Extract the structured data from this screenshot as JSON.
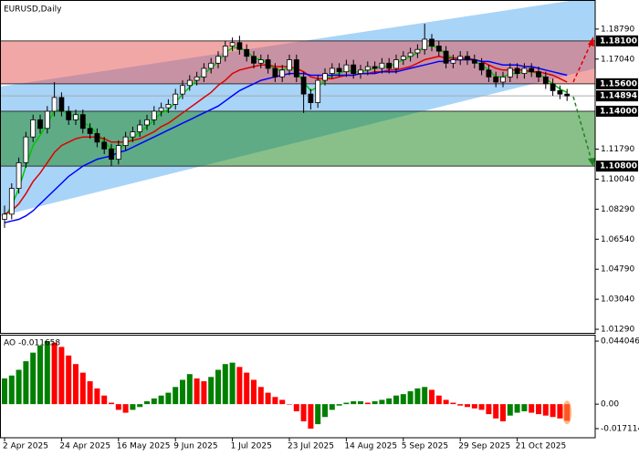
{
  "chart_data": [
    {
      "type": "candlestick",
      "title": "EURUSD,Daily",
      "categories": [
        "2 Apr 2025",
        null,
        null,
        null,
        null,
        null,
        null,
        null,
        "24 Apr 2025",
        null,
        null,
        null,
        null,
        null,
        null,
        null,
        "16 May 2025",
        null,
        null,
        null,
        null,
        null,
        null,
        null,
        "9 Jun 2025",
        null,
        null,
        null,
        null,
        null,
        null,
        null,
        "1 Jul 2025",
        null,
        null,
        null,
        null,
        null,
        null,
        null,
        "23 Jul 2025",
        null,
        null,
        null,
        null,
        null,
        null,
        null,
        "14 Aug 2025",
        null,
        null,
        null,
        null,
        null,
        null,
        null,
        "5 Sep 2025",
        null,
        null,
        null,
        null,
        null,
        null,
        null,
        "29 Sep 2025",
        null,
        null,
        null,
        null,
        null,
        null,
        null,
        "21 Oct 2025",
        null,
        null,
        null,
        null,
        null,
        null,
        null
      ],
      "open": [
        1.077,
        1.08,
        1.095,
        1.11,
        1.125,
        1.135,
        1.13,
        1.14,
        1.148,
        1.14,
        1.135,
        1.138,
        1.13,
        1.127,
        1.122,
        1.118,
        1.112,
        1.12,
        1.125,
        1.128,
        1.132,
        1.135,
        1.14,
        1.142,
        1.144,
        1.15,
        1.155,
        1.158,
        1.16,
        1.165,
        1.168,
        1.172,
        1.178,
        1.18,
        1.176,
        1.172,
        1.168,
        1.17,
        1.165,
        1.16,
        1.164,
        1.17,
        1.16,
        1.15,
        1.145,
        1.158,
        1.162,
        1.165,
        1.163,
        1.167,
        1.162,
        1.164,
        1.166,
        1.165,
        1.168,
        1.165,
        1.17,
        1.172,
        1.174,
        1.176,
        1.182,
        1.178,
        1.175,
        1.168,
        1.17,
        1.172,
        1.17,
        1.168,
        1.164,
        1.16,
        1.157,
        1.16,
        1.165,
        1.162,
        1.165,
        1.163,
        1.16,
        1.156,
        1.152,
        1.15
      ],
      "high": [
        1.085,
        1.098,
        1.113,
        1.128,
        1.138,
        1.138,
        1.143,
        1.157,
        1.151,
        1.143,
        1.141,
        1.141,
        1.133,
        1.13,
        1.125,
        1.121,
        1.123,
        1.128,
        1.131,
        1.135,
        1.138,
        1.143,
        1.145,
        1.147,
        1.153,
        1.158,
        1.161,
        1.163,
        1.168,
        1.171,
        1.175,
        1.181,
        1.183,
        1.184,
        1.179,
        1.175,
        1.173,
        1.173,
        1.168,
        1.167,
        1.173,
        1.173,
        1.163,
        1.153,
        1.161,
        1.165,
        1.168,
        1.168,
        1.17,
        1.17,
        1.167,
        1.169,
        1.169,
        1.171,
        1.171,
        1.173,
        1.175,
        1.177,
        1.179,
        1.191,
        1.185,
        1.181,
        1.178,
        1.173,
        1.175,
        1.175,
        1.173,
        1.171,
        1.167,
        1.163,
        1.163,
        1.168,
        1.168,
        1.168,
        1.168,
        1.166,
        1.163,
        1.159,
        1.155,
        1.153
      ],
      "low": [
        1.072,
        1.077,
        1.092,
        1.107,
        1.122,
        1.127,
        1.127,
        1.137,
        1.137,
        1.132,
        1.132,
        1.127,
        1.124,
        1.119,
        1.115,
        1.108,
        1.109,
        1.117,
        1.122,
        1.125,
        1.129,
        1.132,
        1.137,
        1.139,
        1.141,
        1.147,
        1.152,
        1.155,
        1.157,
        1.162,
        1.165,
        1.169,
        1.175,
        1.173,
        1.169,
        1.165,
        1.165,
        1.162,
        1.157,
        1.157,
        1.161,
        1.157,
        1.139,
        1.141,
        1.142,
        1.155,
        1.159,
        1.16,
        1.16,
        1.159,
        1.159,
        1.161,
        1.162,
        1.162,
        1.162,
        1.162,
        1.167,
        1.169,
        1.171,
        1.173,
        1.175,
        1.172,
        1.165,
        1.165,
        1.167,
        1.167,
        1.165,
        1.161,
        1.157,
        1.154,
        1.154,
        1.157,
        1.159,
        1.159,
        1.16,
        1.157,
        1.153,
        1.149,
        1.147,
        1.146
      ],
      "close": [
        1.08,
        1.095,
        1.11,
        1.125,
        1.135,
        1.13,
        1.14,
        1.148,
        1.14,
        1.135,
        1.138,
        1.13,
        1.127,
        1.122,
        1.118,
        1.112,
        1.12,
        1.125,
        1.128,
        1.132,
        1.135,
        1.14,
        1.142,
        1.144,
        1.15,
        1.155,
        1.158,
        1.16,
        1.165,
        1.168,
        1.172,
        1.178,
        1.18,
        1.176,
        1.172,
        1.168,
        1.17,
        1.165,
        1.16,
        1.164,
        1.17,
        1.16,
        1.15,
        1.145,
        1.158,
        1.162,
        1.165,
        1.163,
        1.167,
        1.162,
        1.164,
        1.166,
        1.165,
        1.168,
        1.165,
        1.17,
        1.172,
        1.174,
        1.176,
        1.182,
        1.178,
        1.175,
        1.168,
        1.17,
        1.172,
        1.17,
        1.168,
        1.164,
        1.16,
        1.157,
        1.16,
        1.165,
        1.162,
        1.165,
        1.163,
        1.16,
        1.156,
        1.152,
        1.15,
        1.14894
      ],
      "moving_averages": [
        {
          "color": "#00c800",
          "values": [
            1.078,
            1.085,
            1.095,
            1.108,
            1.12,
            1.126,
            1.133,
            1.14,
            1.141,
            1.138,
            1.137,
            1.134,
            1.131,
            1.127,
            1.122,
            1.118,
            1.118,
            1.121,
            1.124,
            1.128,
            1.131,
            1.135,
            1.139,
            1.141,
            1.145,
            1.15,
            1.154,
            1.158,
            1.162,
            1.165,
            1.169,
            1.174,
            1.177,
            1.177,
            1.175,
            1.171,
            1.17,
            1.168,
            1.164,
            1.164,
            1.166,
            1.163,
            1.157,
            1.152,
            1.154,
            1.158,
            1.161,
            1.162,
            1.164,
            1.163,
            1.163,
            1.164,
            1.165,
            1.166,
            1.166,
            1.168,
            1.17,
            1.172,
            1.174,
            1.178,
            1.178,
            1.177,
            1.173,
            1.171,
            1.171,
            1.171,
            1.169,
            1.167,
            1.164,
            1.16,
            1.16,
            1.162,
            1.162,
            1.163,
            1.163,
            1.162,
            1.159,
            1.156,
            1.153,
            1.151
          ]
        },
        {
          "color": "#e00000",
          "values": [
            1.08,
            1.082,
            1.086,
            1.092,
            1.099,
            1.104,
            1.11,
            1.116,
            1.12,
            1.122,
            1.124,
            1.125,
            1.125,
            1.125,
            1.124,
            1.122,
            1.122,
            1.122,
            1.123,
            1.124,
            1.126,
            1.128,
            1.131,
            1.133,
            1.136,
            1.139,
            1.142,
            1.145,
            1.148,
            1.151,
            1.155,
            1.158,
            1.162,
            1.164,
            1.165,
            1.166,
            1.167,
            1.167,
            1.166,
            1.166,
            1.166,
            1.165,
            1.163,
            1.16,
            1.159,
            1.159,
            1.159,
            1.16,
            1.161,
            1.161,
            1.162,
            1.162,
            1.163,
            1.163,
            1.164,
            1.164,
            1.165,
            1.166,
            1.168,
            1.17,
            1.171,
            1.172,
            1.171,
            1.171,
            1.171,
            1.171,
            1.17,
            1.169,
            1.167,
            1.165,
            1.164,
            1.164,
            1.164,
            1.164,
            1.163,
            1.163,
            1.162,
            1.161,
            1.159,
            1.157
          ]
        },
        {
          "color": "#0000ff",
          "values": [
            1.075,
            1.076,
            1.077,
            1.079,
            1.082,
            1.086,
            1.09,
            1.094,
            1.098,
            1.102,
            1.105,
            1.108,
            1.11,
            1.112,
            1.113,
            1.114,
            1.116,
            1.117,
            1.119,
            1.121,
            1.123,
            1.125,
            1.127,
            1.129,
            1.131,
            1.133,
            1.135,
            1.137,
            1.139,
            1.141,
            1.143,
            1.146,
            1.149,
            1.152,
            1.154,
            1.156,
            1.158,
            1.159,
            1.16,
            1.161,
            1.162,
            1.162,
            1.162,
            1.161,
            1.161,
            1.161,
            1.161,
            1.161,
            1.161,
            1.161,
            1.162,
            1.162,
            1.162,
            1.163,
            1.163,
            1.163,
            1.164,
            1.165,
            1.166,
            1.167,
            1.168,
            1.169,
            1.169,
            1.17,
            1.17,
            1.17,
            1.17,
            1.169,
            1.169,
            1.168,
            1.167,
            1.167,
            1.167,
            1.166,
            1.166,
            1.165,
            1.164,
            1.163,
            1.162,
            1.161
          ]
        }
      ],
      "ylim": [
        1.0108,
        1.2043
      ],
      "yticks": [
        {
          "value": 1.1879,
          "label": "1.18790"
        },
        {
          "value": 1.1704,
          "label": "1.17040"
        },
        {
          "value": 1.1179,
          "label": "1.11790"
        },
        {
          "value": 1.1004,
          "label": "1.10040"
        },
        {
          "value": 1.0829,
          "label": "1.08290"
        },
        {
          "value": 1.0654,
          "label": "1.06540"
        },
        {
          "value": 1.0479,
          "label": "1.04790"
        },
        {
          "value": 1.0304,
          "label": "1.03040"
        },
        {
          "value": 1.0129,
          "label": "1.01290"
        }
      ],
      "levels": [
        {
          "value": 1.181,
          "label": "1.18100"
        },
        {
          "value": 1.156,
          "label": "1.15600"
        },
        {
          "value": 1.14,
          "label": "1.14000"
        },
        {
          "value": 1.108,
          "label": "1.10800"
        }
      ],
      "current_price": {
        "value": 1.14894,
        "label": "1.14894"
      }
    },
    {
      "type": "bar",
      "title": "AO -0.011658",
      "values": [
        0.018,
        0.02,
        0.024,
        0.03,
        0.036,
        0.041,
        0.044046,
        0.043,
        0.04,
        0.034,
        0.028,
        0.022,
        0.016,
        0.011,
        0.006,
        0.001,
        -0.004,
        -0.006,
        -0.004,
        -0.002,
        0.002,
        0.004,
        0.006,
        0.008,
        0.012,
        0.017,
        0.021,
        0.018,
        0.016,
        0.019,
        0.024,
        0.028,
        0.029,
        0.026,
        0.022,
        0.017,
        0.012,
        0.008,
        0.005,
        0.003,
        0.0,
        -0.005,
        -0.012,
        -0.017114,
        -0.014,
        -0.009,
        -0.004,
        -0.001,
        0.001,
        0.002,
        0.002,
        0.001,
        0.002,
        0.003,
        0.004,
        0.006,
        0.007,
        0.009,
        0.011,
        0.012,
        0.01,
        0.006,
        0.003,
        0.001,
        -0.001,
        -0.002,
        -0.003,
        -0.004,
        -0.007,
        -0.01,
        -0.012,
        -0.008,
        -0.006,
        -0.005,
        -0.006,
        -0.007,
        -0.008,
        -0.009,
        -0.01,
        -0.011658
      ],
      "up_color": "#008000",
      "down_color": "#ff0000",
      "ylim": [
        -0.0235,
        0.0479
      ],
      "yticks": [
        0.044046,
        {
          "value": 0,
          "label": "0.00"
        },
        -0.017114
      ]
    }
  ]
}
